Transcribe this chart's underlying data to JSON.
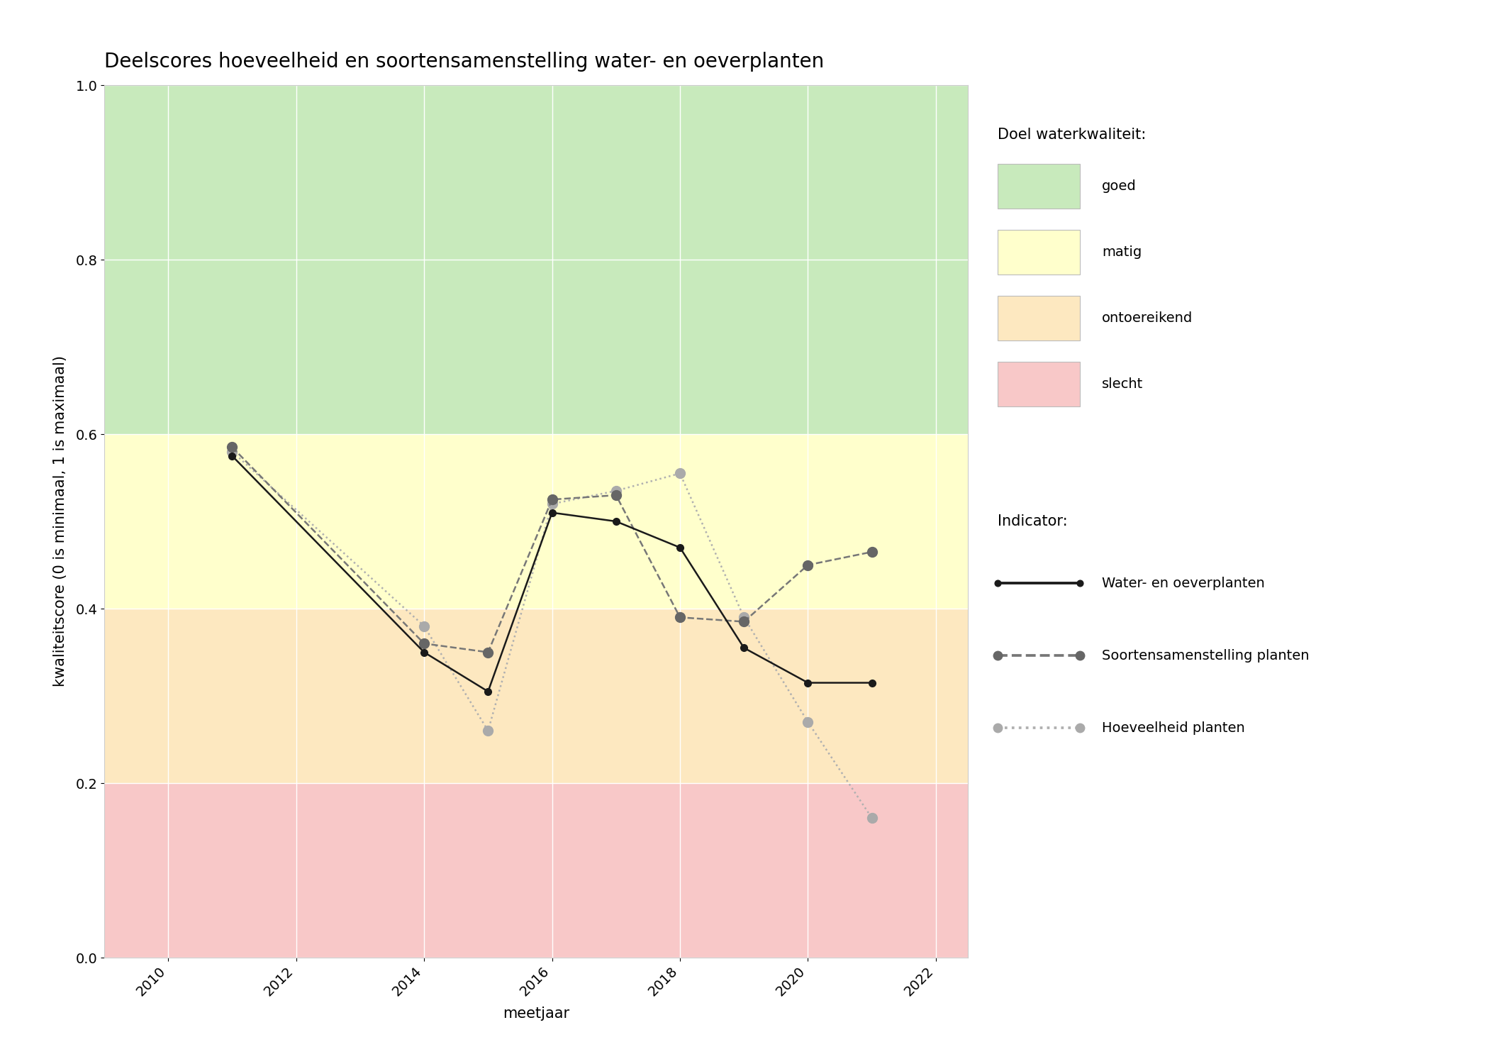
{
  "title": "Deelscores hoeveelheid en soortensamenstelling water- en oeverplanten",
  "xlabel": "meetjaar",
  "ylabel": "kwaliteitscore (0 is minimaal, 1 is maximaal)",
  "xlim": [
    2009.0,
    2022.5
  ],
  "ylim": [
    0.0,
    1.0
  ],
  "xticks": [
    2010,
    2012,
    2014,
    2016,
    2018,
    2020,
    2022
  ],
  "yticks": [
    0.0,
    0.2,
    0.4,
    0.6,
    0.8,
    1.0
  ],
  "bg_color": "#ffffff",
  "plot_bg_color": "#ffffff",
  "quality_bands": {
    "goed": {
      "ymin": 0.6,
      "ymax": 1.0,
      "color": "#c8eabc",
      "label": "goed"
    },
    "matig": {
      "ymin": 0.4,
      "ymax": 0.6,
      "color": "#ffffcc",
      "label": "matig"
    },
    "ontoereikend": {
      "ymin": 0.2,
      "ymax": 0.4,
      "color": "#fde8c0",
      "label": "ontoereikend"
    },
    "slecht": {
      "ymin": 0.0,
      "ymax": 0.2,
      "color": "#f8c8c8",
      "label": "slecht"
    }
  },
  "line_water_oever": {
    "x": [
      2011,
      2014,
      2015,
      2016,
      2017,
      2018,
      2019,
      2020,
      2021
    ],
    "y": [
      0.575,
      0.35,
      0.305,
      0.51,
      0.5,
      0.47,
      0.355,
      0.315,
      0.315
    ],
    "color": "#1a1a1a",
    "linestyle": "solid",
    "linewidth": 1.8,
    "markersize": 7,
    "markerfacecolor": "#1a1a1a",
    "markeredgecolor": "#1a1a1a",
    "label": "Water- en oeverplanten"
  },
  "line_soortensamenstelling": {
    "x": [
      2011,
      2014,
      2015,
      2016,
      2017,
      2018,
      2019,
      2020,
      2021
    ],
    "y": [
      0.585,
      0.36,
      0.35,
      0.525,
      0.53,
      0.39,
      0.385,
      0.45,
      0.465
    ],
    "color": "#777777",
    "linestyle": "dashed",
    "linewidth": 1.8,
    "markersize": 10,
    "markerfacecolor": "#666666",
    "markeredgecolor": "#666666",
    "label": "Soortensamenstelling planten"
  },
  "line_hoeveelheid": {
    "x": [
      2011,
      2014,
      2015,
      2016,
      2017,
      2018,
      2019,
      2020,
      2021
    ],
    "y": [
      0.58,
      0.38,
      0.26,
      0.52,
      0.535,
      0.555,
      0.39,
      0.27,
      0.16
    ],
    "color": "#b0b0b0",
    "linestyle": "dotted",
    "linewidth": 1.8,
    "markersize": 10,
    "markerfacecolor": "#aaaaaa",
    "markeredgecolor": "#aaaaaa",
    "label": "Hoeveelheid planten"
  },
  "legend_quality_title": "Doel waterkwaliteit:",
  "legend_indicator_title": "Indicator:",
  "title_fontsize": 20,
  "label_fontsize": 15,
  "tick_fontsize": 14,
  "legend_fontsize": 14,
  "legend_title_fontsize": 15
}
